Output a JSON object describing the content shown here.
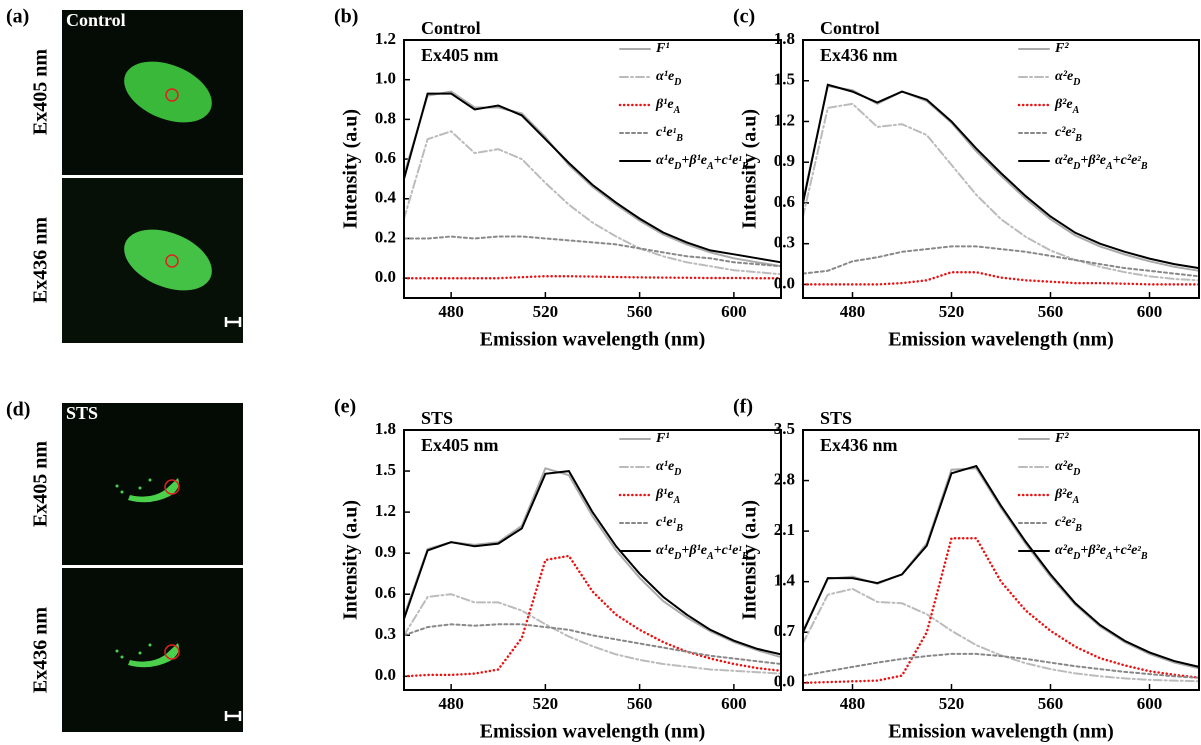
{
  "image_panels": [
    {
      "label": "(a)",
      "title": "Control",
      "rows": [
        "Ex405 nm",
        "Ex436 nm"
      ]
    },
    {
      "label": "(d)",
      "title": "STS",
      "rows": [
        "Ex405 nm",
        "Ex436 nm"
      ]
    }
  ],
  "chart_data": [
    {
      "type": "line",
      "panel_label": "(b)",
      "title": "Control",
      "subtitle": "Ex405 nm",
      "x_label": "Emission wavelength (nm)",
      "y_label": "Intensity (a.u)",
      "x": [
        460,
        470,
        480,
        490,
        500,
        510,
        520,
        530,
        540,
        550,
        560,
        570,
        580,
        590,
        600,
        610,
        620
      ],
      "xlim": [
        460,
        620
      ],
      "xticks": [
        480,
        520,
        560,
        600
      ],
      "ylim": [
        -0.1,
        1.2
      ],
      "yticks": [
        {
          "value": 0,
          "label": "0.0"
        },
        0.2,
        0.4,
        0.6,
        0.8,
        {
          "value": 1,
          "label": "1.0"
        },
        1.2
      ],
      "series": [
        {
          "name": "F¹",
          "color": "#aaaaaa",
          "style": "solid",
          "values": [
            0.52,
            0.92,
            0.94,
            0.86,
            0.86,
            0.83,
            0.71,
            0.57,
            0.46,
            0.37,
            0.29,
            0.22,
            0.17,
            0.13,
            0.1,
            0.08,
            0.06
          ]
        },
        {
          "name": "α¹eD",
          "color": "#bbbbbb",
          "style": "dashdot",
          "values": [
            0.3,
            0.7,
            0.74,
            0.63,
            0.65,
            0.6,
            0.48,
            0.37,
            0.28,
            0.21,
            0.15,
            0.11,
            0.08,
            0.06,
            0.04,
            0.03,
            0.02
          ]
        },
        {
          "name": "β¹eA",
          "color": "#ee1111",
          "style": "dotted",
          "values": [
            0,
            0,
            0,
            0,
            0,
            0.005,
            0.01,
            0.01,
            0.008,
            0.006,
            0.004,
            0.003,
            0.002,
            0.001,
            0.001,
            0,
            0
          ]
        },
        {
          "name": "c¹e¹B",
          "color": "#888888",
          "style": "dashed",
          "values": [
            0.2,
            0.2,
            0.21,
            0.2,
            0.21,
            0.21,
            0.2,
            0.19,
            0.18,
            0.17,
            0.15,
            0.13,
            0.11,
            0.1,
            0.08,
            0.07,
            0.06
          ]
        },
        {
          "name": "α¹eD+β¹eA+c¹e¹B",
          "color": "#000000",
          "style": "solid",
          "values": [
            0.5,
            0.93,
            0.93,
            0.85,
            0.87,
            0.82,
            0.7,
            0.58,
            0.47,
            0.38,
            0.3,
            0.23,
            0.18,
            0.14,
            0.12,
            0.1,
            0.08
          ]
        }
      ]
    },
    {
      "type": "line",
      "panel_label": "(c)",
      "title": "Control",
      "subtitle": "Ex436 nm",
      "x_label": "Emission wavelength (nm)",
      "y_label": "Intensity (a.u)",
      "x": [
        460,
        470,
        480,
        490,
        500,
        510,
        520,
        530,
        540,
        550,
        560,
        570,
        580,
        590,
        600,
        610,
        620
      ],
      "xlim": [
        460,
        620
      ],
      "xticks": [
        480,
        520,
        560,
        600
      ],
      "ylim": [
        -0.1,
        1.8
      ],
      "yticks": [
        {
          "value": 0,
          "label": "0.0"
        },
        0.3,
        0.6,
        0.9,
        1.2,
        1.5,
        1.8
      ],
      "series": [
        {
          "name": "F²",
          "color": "#aaaaaa",
          "style": "solid",
          "values": [
            0.62,
            1.46,
            1.43,
            1.33,
            1.42,
            1.35,
            1.19,
            0.98,
            0.8,
            0.63,
            0.48,
            0.36,
            0.28,
            0.22,
            0.17,
            0.13,
            0.1
          ]
        },
        {
          "name": "α²eD",
          "color": "#bbbbbb",
          "style": "dashdot",
          "values": [
            0.5,
            1.3,
            1.33,
            1.16,
            1.18,
            1.1,
            0.88,
            0.66,
            0.48,
            0.35,
            0.25,
            0.18,
            0.13,
            0.09,
            0.06,
            0.04,
            0.03
          ]
        },
        {
          "name": "β²eA",
          "color": "#ee1111",
          "style": "dotted",
          "values": [
            0,
            0,
            0,
            0,
            0.01,
            0.03,
            0.09,
            0.09,
            0.05,
            0.03,
            0.02,
            0.01,
            0.01,
            0.005,
            0,
            0,
            0
          ]
        },
        {
          "name": "c²e²B",
          "color": "#888888",
          "style": "dashed",
          "values": [
            0.08,
            0.1,
            0.17,
            0.2,
            0.24,
            0.26,
            0.28,
            0.28,
            0.26,
            0.24,
            0.21,
            0.18,
            0.15,
            0.12,
            0.1,
            0.08,
            0.06
          ]
        },
        {
          "name": "α²eD+β²eA+c²e²B",
          "color": "#000000",
          "style": "solid",
          "values": [
            0.6,
            1.47,
            1.42,
            1.34,
            1.42,
            1.36,
            1.2,
            1.0,
            0.82,
            0.65,
            0.5,
            0.38,
            0.3,
            0.24,
            0.19,
            0.15,
            0.12
          ]
        }
      ]
    },
    {
      "type": "line",
      "panel_label": "(e)",
      "title": "STS",
      "subtitle": "Ex405 nm",
      "x_label": "Emission wavelength (nm)",
      "y_label": "Intensity (a.u)",
      "x": [
        460,
        470,
        480,
        490,
        500,
        510,
        520,
        530,
        540,
        550,
        560,
        570,
        580,
        590,
        600,
        610,
        620
      ],
      "xlim": [
        460,
        620
      ],
      "xticks": [
        480,
        520,
        560,
        600
      ],
      "ylim": [
        -0.1,
        1.8
      ],
      "yticks": [
        {
          "value": 0,
          "label": "0.0"
        },
        0.3,
        0.6,
        0.9,
        1.2,
        1.5,
        1.8
      ],
      "series": [
        {
          "name": "F¹",
          "color": "#aaaaaa",
          "style": "solid",
          "values": [
            0.44,
            0.93,
            0.98,
            0.96,
            0.98,
            1.1,
            1.52,
            1.47,
            1.17,
            0.92,
            0.72,
            0.55,
            0.43,
            0.33,
            0.25,
            0.19,
            0.14
          ]
        },
        {
          "name": "α¹eD",
          "color": "#bbbbbb",
          "style": "dashdot",
          "values": [
            0.3,
            0.58,
            0.6,
            0.54,
            0.54,
            0.48,
            0.38,
            0.29,
            0.22,
            0.16,
            0.12,
            0.09,
            0.07,
            0.05,
            0.04,
            0.03,
            0.02
          ]
        },
        {
          "name": "β¹eA",
          "color": "#ee1111",
          "style": "dotted",
          "values": [
            0,
            0.01,
            0.01,
            0.02,
            0.05,
            0.28,
            0.85,
            0.88,
            0.62,
            0.45,
            0.34,
            0.25,
            0.18,
            0.13,
            0.09,
            0.06,
            0.04
          ]
        },
        {
          "name": "c¹e¹B",
          "color": "#888888",
          "style": "dashed",
          "values": [
            0.3,
            0.36,
            0.38,
            0.37,
            0.38,
            0.38,
            0.36,
            0.34,
            0.3,
            0.27,
            0.24,
            0.21,
            0.18,
            0.15,
            0.13,
            0.11,
            0.09
          ]
        },
        {
          "name": "α¹eD+β¹eA+c¹e¹B",
          "color": "#000000",
          "style": "solid",
          "values": [
            0.42,
            0.92,
            0.98,
            0.95,
            0.97,
            1.08,
            1.48,
            1.5,
            1.2,
            0.95,
            0.75,
            0.58,
            0.45,
            0.34,
            0.26,
            0.2,
            0.16
          ]
        }
      ]
    },
    {
      "type": "line",
      "panel_label": "(f)",
      "title": "STS",
      "subtitle": "Ex436 nm",
      "x_label": "Emission wavelength (nm)",
      "y_label": "Intensity (a.u)",
      "x": [
        460,
        470,
        480,
        490,
        500,
        510,
        520,
        530,
        540,
        550,
        560,
        570,
        580,
        590,
        600,
        610,
        620
      ],
      "xlim": [
        460,
        620
      ],
      "xticks": [
        480,
        520,
        560,
        600
      ],
      "ylim": [
        -0.1,
        3.5
      ],
      "yticks": [
        {
          "value": 0,
          "label": "0.0"
        },
        0.7,
        1.4,
        2.1,
        2.8,
        3.5
      ],
      "series": [
        {
          "name": "F²",
          "color": "#aaaaaa",
          "style": "solid",
          "values": [
            0.72,
            1.44,
            1.47,
            1.37,
            1.5,
            1.93,
            2.95,
            2.97,
            2.42,
            1.92,
            1.47,
            1.08,
            0.78,
            0.56,
            0.4,
            0.28,
            0.2
          ]
        },
        {
          "name": "α²eD",
          "color": "#bbbbbb",
          "style": "dashdot",
          "values": [
            0.55,
            1.22,
            1.3,
            1.12,
            1.1,
            0.95,
            0.72,
            0.52,
            0.38,
            0.27,
            0.19,
            0.13,
            0.09,
            0.06,
            0.04,
            0.03,
            0.02
          ]
        },
        {
          "name": "β²eA",
          "color": "#ee1111",
          "style": "dotted",
          "values": [
            0,
            0.01,
            0.02,
            0.03,
            0.1,
            0.7,
            2.0,
            2.0,
            1.4,
            1.0,
            0.72,
            0.5,
            0.34,
            0.24,
            0.16,
            0.11,
            0.07
          ]
        },
        {
          "name": "c²e²B",
          "color": "#888888",
          "style": "dashed",
          "values": [
            0.1,
            0.16,
            0.22,
            0.28,
            0.33,
            0.37,
            0.4,
            0.4,
            0.37,
            0.33,
            0.28,
            0.23,
            0.19,
            0.15,
            0.12,
            0.09,
            0.07
          ]
        },
        {
          "name": "α²eD+β²eA+c²e²B",
          "color": "#000000",
          "style": "solid",
          "values": [
            0.7,
            1.45,
            1.45,
            1.38,
            1.5,
            1.9,
            2.9,
            3.0,
            2.45,
            1.95,
            1.5,
            1.1,
            0.8,
            0.58,
            0.42,
            0.3,
            0.22
          ]
        }
      ]
    }
  ]
}
